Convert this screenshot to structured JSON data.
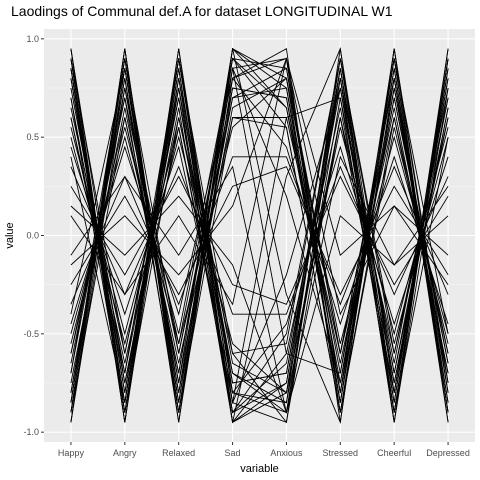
{
  "chart_data": {
    "type": "line",
    "title": "Laodings of Communal def.A for dataset LONGITUDINAL W1",
    "xlabel": "variable",
    "ylabel": "value",
    "categories": [
      "Happy",
      "Angry",
      "Relaxed",
      "Sad",
      "Anxious",
      "Stressed",
      "Cheerful",
      "Depressed"
    ],
    "ylim": [
      -1.05,
      1.05
    ],
    "yticks": [
      -1.0,
      -0.5,
      0.0,
      0.5,
      1.0
    ],
    "ytick_labels": [
      "-1.0",
      "-0.5",
      "0.0",
      "0.5",
      "1.0"
    ],
    "grid": true,
    "legend": "none",
    "colors": {
      "panel": "#ebebeb",
      "grid_major": "#ffffff",
      "grid_minor": "#f5f5f5",
      "line": "#000000"
    },
    "series": [
      {
        "values": [
          0.95,
          -0.9,
          0.85,
          -0.95,
          -0.8,
          0.9,
          -0.85,
          0.95
        ]
      },
      {
        "values": [
          -0.9,
          0.95,
          -0.85,
          0.9,
          0.85,
          -0.8,
          0.9,
          -0.9
        ]
      },
      {
        "values": [
          0.85,
          -0.8,
          0.9,
          -0.85,
          -0.95,
          0.85,
          -0.9,
          0.85
        ]
      },
      {
        "values": [
          -0.85,
          0.9,
          -0.9,
          0.95,
          0.8,
          -0.85,
          0.85,
          -0.95
        ]
      },
      {
        "values": [
          0.9,
          -0.95,
          0.8,
          -0.9,
          -0.75,
          0.8,
          -0.95,
          0.9
        ]
      },
      {
        "values": [
          -0.95,
          0.85,
          -0.8,
          0.85,
          0.9,
          -0.9,
          0.8,
          -0.85
        ]
      },
      {
        "values": [
          0.8,
          -0.85,
          0.95,
          -0.8,
          -0.85,
          0.95,
          -0.8,
          0.8
        ]
      },
      {
        "values": [
          -0.8,
          0.8,
          -0.95,
          0.8,
          0.95,
          -0.95,
          0.95,
          -0.8
        ]
      },
      {
        "values": [
          0.75,
          -0.7,
          0.7,
          -0.75,
          -0.7,
          0.75,
          -0.7,
          0.7
        ]
      },
      {
        "values": [
          -0.7,
          0.75,
          -0.75,
          0.7,
          0.75,
          -0.7,
          0.75,
          -0.75
        ]
      },
      {
        "values": [
          0.65,
          -0.6,
          0.75,
          -0.7,
          -0.9,
          0.7,
          -0.65,
          0.75
        ]
      },
      {
        "values": [
          -0.65,
          0.7,
          -0.6,
          0.75,
          0.7,
          -0.75,
          0.7,
          -0.65
        ]
      },
      {
        "values": [
          0.7,
          -0.75,
          0.65,
          -0.95,
          -0.6,
          0.65,
          -0.75,
          0.65
        ]
      },
      {
        "values": [
          -0.75,
          0.65,
          -0.7,
          0.95,
          0.65,
          -0.65,
          0.65,
          -0.7
        ]
      },
      {
        "values": [
          0.6,
          -0.65,
          0.6,
          -0.6,
          -0.95,
          0.6,
          -0.6,
          0.6
        ]
      },
      {
        "values": [
          -0.6,
          0.6,
          -0.65,
          0.6,
          0.6,
          -0.6,
          0.6,
          -0.6
        ]
      },
      {
        "values": [
          0.55,
          -0.5,
          0.55,
          -0.9,
          -0.5,
          0.9,
          -0.55,
          0.5
        ]
      },
      {
        "values": [
          -0.55,
          0.55,
          -0.5,
          0.9,
          0.55,
          -0.9,
          0.55,
          -0.55
        ]
      },
      {
        "values": [
          0.5,
          -0.55,
          0.5,
          -0.55,
          -0.8,
          0.55,
          -0.5,
          0.55
        ]
      },
      {
        "values": [
          -0.5,
          0.5,
          -0.55,
          0.55,
          0.8,
          -0.55,
          0.5,
          -0.5
        ]
      },
      {
        "values": [
          0.45,
          -0.4,
          0.45,
          -0.8,
          -0.45,
          0.45,
          -0.45,
          0.4
        ]
      },
      {
        "values": [
          -0.45,
          0.45,
          -0.4,
          0.8,
          0.45,
          -0.45,
          0.4,
          -0.45
        ]
      },
      {
        "values": [
          0.35,
          -0.3,
          0.35,
          -0.4,
          -0.4,
          0.35,
          -0.3,
          0.3
        ]
      },
      {
        "values": [
          -0.35,
          0.3,
          -0.35,
          0.4,
          0.4,
          -0.35,
          0.35,
          -0.3
        ]
      },
      {
        "values": [
          0.25,
          -0.2,
          0.3,
          -0.25,
          -0.35,
          0.3,
          -0.25,
          0.2
        ]
      },
      {
        "values": [
          -0.25,
          0.2,
          -0.3,
          0.25,
          0.35,
          -0.3,
          0.25,
          -0.2
        ]
      },
      {
        "values": [
          0.95,
          -0.95,
          0.95,
          -0.95,
          0.3,
          0.95,
          -0.95,
          0.95
        ]
      },
      {
        "values": [
          -0.95,
          0.95,
          -0.95,
          0.95,
          -0.3,
          -0.95,
          0.95,
          -0.95
        ]
      },
      {
        "values": [
          0.9,
          -0.9,
          0.9,
          -0.75,
          -0.7,
          0.85,
          -0.9,
          0.9
        ]
      },
      {
        "values": [
          -0.9,
          0.9,
          -0.9,
          0.75,
          0.7,
          -0.85,
          0.9,
          -0.9
        ]
      },
      {
        "values": [
          0.85,
          -0.85,
          0.85,
          -0.85,
          -0.2,
          0.75,
          -0.85,
          0.85
        ]
      },
      {
        "values": [
          -0.85,
          0.85,
          -0.85,
          0.85,
          0.2,
          -0.75,
          0.85,
          -0.85
        ]
      },
      {
        "values": [
          0.8,
          -0.8,
          0.8,
          -0.65,
          -0.8,
          0.6,
          -0.8,
          0.8
        ]
      },
      {
        "values": [
          -0.8,
          0.8,
          -0.8,
          0.65,
          0.8,
          -0.6,
          0.8,
          -0.8
        ]
      },
      {
        "values": [
          0.15,
          -0.1,
          0.2,
          -0.15,
          -0.9,
          0.1,
          -0.15,
          0.1
        ]
      },
      {
        "values": [
          -0.15,
          0.1,
          -0.2,
          0.15,
          0.9,
          -0.1,
          0.15,
          -0.1
        ]
      },
      {
        "values": [
          0.9,
          -0.6,
          0.7,
          -0.9,
          -0.65,
          0.8,
          -0.7,
          0.6
        ]
      },
      {
        "values": [
          -0.9,
          0.6,
          -0.7,
          0.9,
          0.65,
          -0.8,
          0.7,
          -0.6
        ]
      },
      {
        "values": [
          0.7,
          -0.9,
          0.6,
          -0.7,
          -0.85,
          0.6,
          -0.8,
          0.9
        ]
      },
      {
        "values": [
          -0.7,
          0.9,
          -0.6,
          0.7,
          0.85,
          -0.6,
          0.8,
          -0.9
        ]
      },
      {
        "values": [
          0.6,
          -0.7,
          0.9,
          -0.6,
          -0.55,
          0.9,
          -0.6,
          0.7
        ]
      },
      {
        "values": [
          -0.6,
          0.7,
          -0.9,
          0.6,
          0.55,
          -0.9,
          0.6,
          -0.7
        ]
      },
      {
        "values": [
          0.95,
          -0.75,
          0.55,
          -0.85,
          0.6,
          0.7,
          -0.9,
          0.5
        ]
      },
      {
        "values": [
          -0.95,
          0.75,
          -0.55,
          0.85,
          -0.6,
          -0.7,
          0.9,
          -0.5
        ]
      },
      {
        "values": [
          0.4,
          -0.85,
          0.75,
          -0.95,
          -0.75,
          0.85,
          -0.75,
          0.65
        ]
      },
      {
        "values": [
          -0.4,
          0.85,
          -0.75,
          0.95,
          0.75,
          -0.85,
          0.75,
          -0.65
        ]
      },
      {
        "values": [
          0.1,
          -0.3,
          0.1,
          -0.35,
          0.9,
          -0.4,
          0.15,
          -0.25
        ]
      },
      {
        "values": [
          -0.1,
          0.3,
          -0.1,
          0.35,
          -0.9,
          0.4,
          -0.15,
          0.25
        ]
      },
      {
        "values": [
          0.85,
          -0.95,
          0.9,
          -0.8,
          -0.9,
          0.8,
          -0.95,
          0.75
        ]
      },
      {
        "values": [
          -0.85,
          0.95,
          -0.9,
          0.8,
          0.9,
          -0.8,
          0.95,
          -0.75
        ]
      }
    ]
  }
}
